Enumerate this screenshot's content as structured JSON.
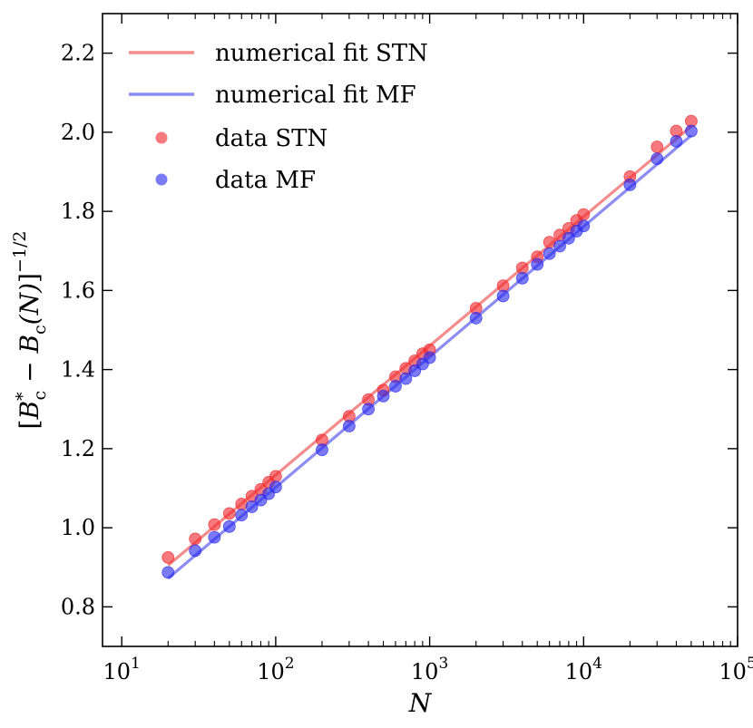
{
  "chart_data": {
    "type": "scatter",
    "xscale": "log",
    "xlabel": "N",
    "ylabel": "[B*c − Bc(N)]−1/2",
    "ylabel_parts": {
      "open": "[",
      "b1": "B",
      "sup1": "*",
      "sub1": "c",
      "minus": " − ",
      "b2": "B",
      "sub2": "c",
      "arg": "(N)",
      "close": "]",
      "exp": "−1/2"
    },
    "xlim": [
      7.5,
      100000
    ],
    "ylim": [
      0.7,
      2.3
    ],
    "xticks": [
      {
        "value": 10,
        "base": "10",
        "exp": "1"
      },
      {
        "value": 100,
        "base": "10",
        "exp": "2"
      },
      {
        "value": 1000,
        "base": "10",
        "exp": "3"
      },
      {
        "value": 10000,
        "base": "10",
        "exp": "4"
      },
      {
        "value": 100000,
        "base": "10",
        "exp": "5"
      }
    ],
    "yticks": [
      {
        "value": 0.8,
        "label": "0.8"
      },
      {
        "value": 1.0,
        "label": "1.0"
      },
      {
        "value": 1.2,
        "label": "1.2"
      },
      {
        "value": 1.4,
        "label": "1.4"
      },
      {
        "value": 1.6,
        "label": "1.6"
      },
      {
        "value": 1.8,
        "label": "1.8"
      },
      {
        "value": 2.0,
        "label": "2.0"
      },
      {
        "value": 2.2,
        "label": "2.2"
      }
    ],
    "series": [
      {
        "name": "data STN",
        "kind": "scatter",
        "color": "#f0282d",
        "x": [
          20,
          30,
          40,
          50,
          60,
          70,
          80,
          90,
          100,
          200,
          300,
          400,
          500,
          600,
          700,
          800,
          900,
          1000,
          2000,
          3000,
          4000,
          5000,
          6000,
          7000,
          8000,
          9000,
          10000,
          20000,
          30000,
          40000,
          50000
        ],
        "y": [
          0.925,
          0.972,
          1.008,
          1.036,
          1.06,
          1.08,
          1.097,
          1.115,
          1.13,
          1.222,
          1.282,
          1.324,
          1.348,
          1.382,
          1.403,
          1.422,
          1.44,
          1.45,
          1.555,
          1.612,
          1.657,
          1.685,
          1.722,
          1.74,
          1.757,
          1.777,
          1.792,
          1.888,
          1.963,
          2.003,
          2.028
        ]
      },
      {
        "name": "data MF",
        "kind": "scatter",
        "color": "#2a2af0",
        "x": [
          20,
          30,
          40,
          50,
          60,
          70,
          80,
          90,
          100,
          200,
          300,
          400,
          500,
          600,
          700,
          800,
          900,
          1000,
          2000,
          3000,
          4000,
          5000,
          6000,
          7000,
          8000,
          9000,
          10000,
          20000,
          30000,
          40000,
          50000
        ],
        "y": [
          0.887,
          0.942,
          0.976,
          1.003,
          1.032,
          1.053,
          1.07,
          1.086,
          1.103,
          1.197,
          1.257,
          1.3,
          1.333,
          1.358,
          1.377,
          1.397,
          1.414,
          1.43,
          1.53,
          1.586,
          1.631,
          1.666,
          1.693,
          1.712,
          1.732,
          1.75,
          1.763,
          1.867,
          1.933,
          1.977,
          2.003
        ]
      },
      {
        "name": "numerical fit STN",
        "kind": "line",
        "color": "#f48c8c",
        "x": [
          20,
          50000
        ],
        "y": [
          0.905,
          2.015
        ]
      },
      {
        "name": "numerical fit MF",
        "kind": "line",
        "color": "#8c8cf2",
        "x": [
          20,
          50000
        ],
        "y": [
          0.872,
          1.992
        ]
      }
    ],
    "legend": {
      "position": "top-left",
      "entries": [
        {
          "label": "numerical fit STN",
          "kind": "line",
          "color": "#f48c8c"
        },
        {
          "label": "numerical fit MF",
          "kind": "line",
          "color": "#8c8cf2"
        },
        {
          "label": "data STN",
          "kind": "marker",
          "color": "#f0282d"
        },
        {
          "label": "data MF",
          "kind": "marker",
          "color": "#2a2af0"
        }
      ]
    },
    "grid": false
  }
}
